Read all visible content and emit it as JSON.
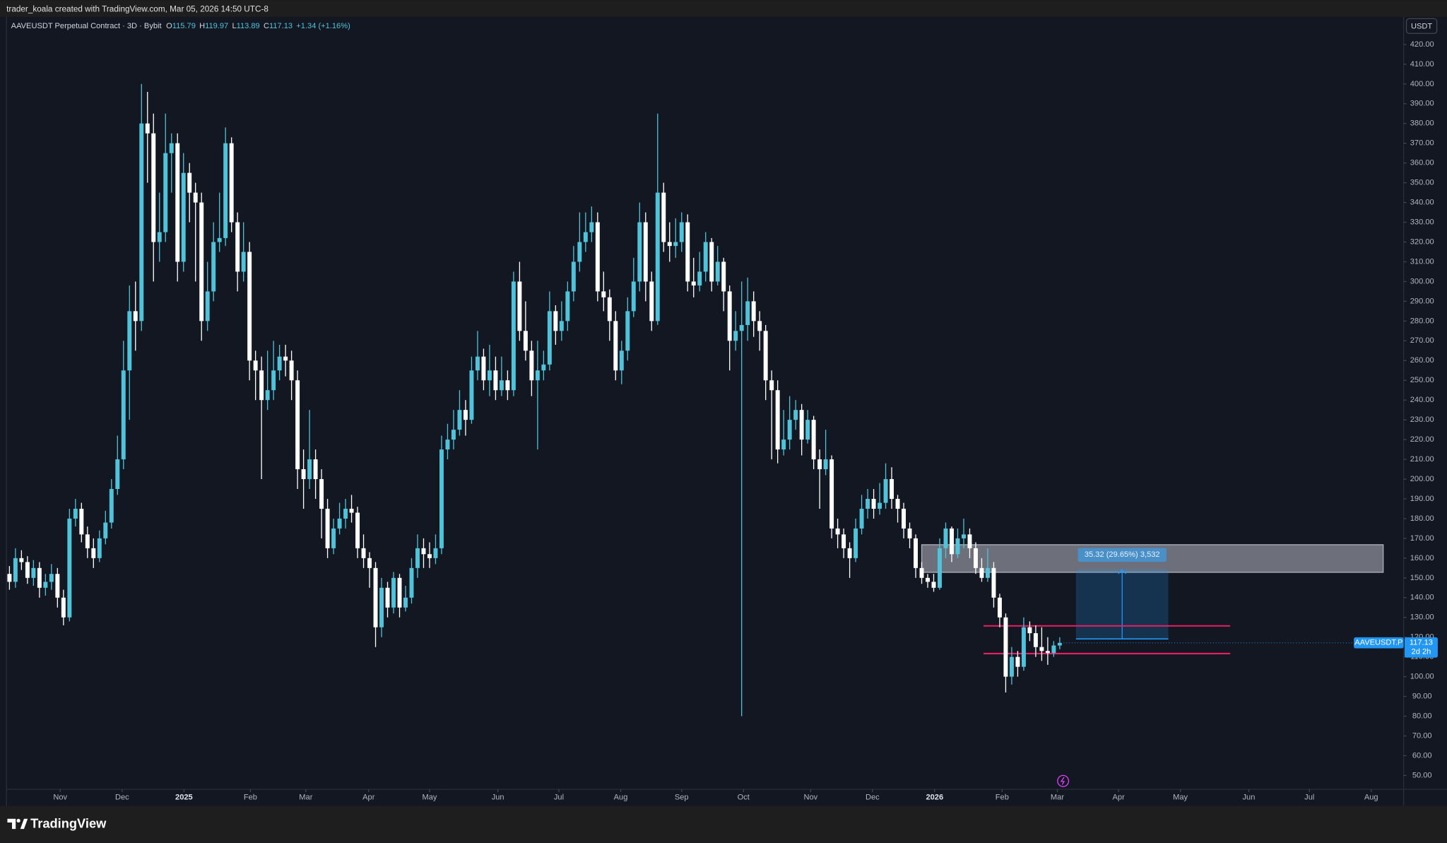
{
  "chart_data": {
    "type": "candlestick",
    "credit": "trader_koala created with TradingView.com, Mar 05, 2026 14:50 UTC-8",
    "title": "AAVEUSDT Perpetual Contract · 3D · Bybit",
    "ohlc_letters": [
      "O",
      "H",
      "L",
      "C"
    ],
    "change_label": "+1.34 (+1.16%)",
    "currency": "USDT",
    "symbol": "AAVEUSDT.P",
    "countdown": "2d 2h",
    "brand": "TradingView",
    "up_color": "#4fc3d9",
    "down_color": "#ffffff",
    "open": [
      152,
      148,
      160,
      158,
      150,
      155,
      145,
      148,
      152,
      140,
      130,
      180,
      185,
      172,
      165,
      160,
      170,
      178,
      195,
      210,
      255,
      285,
      280,
      380,
      375,
      320,
      325,
      365,
      370,
      310,
      355,
      345,
      340,
      280,
      295,
      320,
      322,
      370,
      330,
      305,
      315,
      260,
      255,
      240,
      245,
      255,
      262,
      260,
      250,
      205,
      200,
      210,
      200,
      185,
      165,
      175,
      180,
      185,
      183,
      165,
      160,
      155,
      125,
      145,
      135,
      150,
      135,
      140,
      155,
      165,
      162,
      160,
      165,
      215,
      220,
      225,
      235,
      230,
      255,
      262,
      250,
      255,
      245,
      250,
      245,
      300,
      275,
      265,
      250,
      255,
      258,
      285,
      275,
      280,
      295,
      310,
      320,
      325,
      330,
      295,
      292,
      280,
      255,
      265,
      285,
      300,
      330,
      300,
      280,
      345,
      320,
      318,
      320,
      330,
      300,
      298,
      305,
      320,
      300,
      310,
      295,
      270,
      275,
      278,
      290,
      280,
      275,
      250,
      245,
      215,
      220,
      230,
      235,
      220,
      230,
      210,
      205,
      210,
      175,
      172,
      165,
      160,
      175,
      185,
      190,
      185,
      188,
      200,
      190,
      185,
      175,
      170,
      155,
      150,
      148,
      145,
      165,
      175,
      162,
      170,
      172,
      165,
      155,
      150,
      155,
      140,
      130,
      100,
      110,
      105,
      125,
      122,
      115,
      113,
      112,
      115.79
    ],
    "high": [
      156,
      165,
      164,
      161,
      159,
      158,
      152,
      157,
      155,
      144,
      185,
      190,
      188,
      176,
      170,
      174,
      184,
      200,
      222,
      270,
      298,
      300,
      400,
      396,
      385,
      345,
      385,
      375,
      375,
      365,
      360,
      350,
      345,
      310,
      330,
      345,
      378,
      373,
      335,
      330,
      320,
      265,
      262,
      265,
      270,
      268,
      268,
      265,
      255,
      215,
      235,
      215,
      205,
      190,
      180,
      188,
      190,
      192,
      186,
      172,
      163,
      158,
      150,
      148,
      153,
      152,
      146,
      160,
      172,
      170,
      168,
      172,
      222,
      228,
      235,
      245,
      240,
      262,
      275,
      266,
      268,
      262,
      262,
      255,
      305,
      310,
      290,
      270,
      270,
      265,
      295,
      288,
      290,
      300,
      318,
      335,
      335,
      338,
      335,
      305,
      296,
      285,
      270,
      292,
      312,
      340,
      335,
      305,
      385,
      350,
      330,
      332,
      335,
      334,
      312,
      315,
      325,
      322,
      318,
      312,
      298,
      285,
      300,
      302,
      295,
      285,
      278,
      255,
      250,
      235,
      242,
      240,
      238,
      235,
      232,
      215,
      225,
      212,
      180,
      175,
      168,
      180,
      192,
      195,
      195,
      198,
      208,
      206,
      192,
      188,
      178,
      172,
      158,
      152,
      152,
      170,
      178,
      176,
      175,
      180,
      175,
      168,
      160,
      165,
      158,
      142,
      132,
      115,
      113,
      130,
      128,
      126,
      125,
      120,
      118,
      119.97
    ],
    "low": [
      144,
      145,
      154,
      147,
      146,
      140,
      141,
      144,
      135,
      126,
      128,
      176,
      168,
      160,
      155,
      158,
      167,
      175,
      192,
      205,
      230,
      265,
      275,
      350,
      300,
      310,
      320,
      345,
      300,
      305,
      330,
      300,
      270,
      275,
      290,
      315,
      318,
      325,
      295,
      300,
      250,
      240,
      200,
      235,
      240,
      250,
      252,
      240,
      195,
      185,
      195,
      190,
      170,
      160,
      162,
      172,
      175,
      178,
      160,
      155,
      145,
      115,
      120,
      130,
      132,
      130,
      133,
      137,
      150,
      155,
      155,
      157,
      162,
      210,
      215,
      222,
      222,
      228,
      250,
      245,
      242,
      240,
      242,
      240,
      242,
      270,
      260,
      242,
      215,
      250,
      255,
      268,
      270,
      275,
      290,
      305,
      315,
      320,
      290,
      285,
      270,
      250,
      248,
      260,
      282,
      295,
      290,
      275,
      278,
      315,
      310,
      312,
      315,
      295,
      292,
      295,
      300,
      295,
      298,
      285,
      255,
      265,
      80,
      270,
      272,
      265,
      240,
      210,
      208,
      212,
      215,
      225,
      212,
      218,
      205,
      185,
      202,
      170,
      165,
      160,
      150,
      158,
      172,
      180,
      180,
      182,
      185,
      185,
      178,
      170,
      165,
      150,
      147,
      145,
      143,
      144,
      160,
      158,
      160,
      165,
      160,
      152,
      148,
      148,
      135,
      125,
      92,
      96,
      100,
      103,
      118,
      110,
      108,
      106,
      110,
      113.89
    ],
    "close": [
      148,
      160,
      158,
      150,
      155,
      145,
      148,
      152,
      140,
      130,
      180,
      185,
      172,
      165,
      160,
      170,
      178,
      195,
      210,
      255,
      285,
      280,
      380,
      375,
      320,
      325,
      365,
      370,
      310,
      355,
      345,
      340,
      280,
      295,
      320,
      322,
      370,
      330,
      305,
      315,
      260,
      255,
      240,
      245,
      255,
      262,
      260,
      250,
      205,
      200,
      210,
      200,
      185,
      165,
      175,
      180,
      185,
      183,
      165,
      160,
      155,
      125,
      145,
      135,
      150,
      135,
      140,
      155,
      165,
      162,
      160,
      165,
      215,
      220,
      225,
      235,
      230,
      255,
      262,
      250,
      255,
      245,
      250,
      245,
      300,
      275,
      265,
      250,
      255,
      258,
      285,
      275,
      280,
      295,
      310,
      320,
      325,
      330,
      295,
      292,
      280,
      255,
      265,
      285,
      300,
      330,
      300,
      280,
      345,
      320,
      318,
      320,
      330,
      300,
      298,
      305,
      320,
      300,
      310,
      295,
      270,
      275,
      278,
      290,
      280,
      275,
      250,
      245,
      215,
      220,
      230,
      235,
      220,
      230,
      210,
      205,
      210,
      175,
      172,
      165,
      160,
      175,
      185,
      190,
      185,
      188,
      200,
      190,
      185,
      175,
      170,
      155,
      150,
      148,
      145,
      165,
      175,
      162,
      170,
      172,
      165,
      155,
      150,
      155,
      140,
      130,
      100,
      110,
      105,
      125,
      122,
      115,
      113,
      112,
      115.79,
      117.13
    ],
    "xlim": [
      -0.5,
      232.3
    ],
    "xticks": [
      {
        "value": 8.46,
        "label": "Nov"
      },
      {
        "value": 18.77,
        "label": "Dec"
      },
      {
        "value": 29.08,
        "label": "2025"
      },
      {
        "value": 40.15,
        "label": "Feb"
      },
      {
        "value": 49.38,
        "label": "Mar"
      },
      {
        "value": 59.85,
        "label": "Apr"
      },
      {
        "value": 70.0,
        "label": "May"
      },
      {
        "value": 81.38,
        "label": "Jun"
      },
      {
        "value": 91.54,
        "label": "Jul"
      },
      {
        "value": 101.85,
        "label": "Aug"
      },
      {
        "value": 112.0,
        "label": "Sep"
      },
      {
        "value": 122.3,
        "label": "Oct"
      },
      {
        "value": 133.5,
        "label": "Nov"
      },
      {
        "value": 143.8,
        "label": "Dec"
      },
      {
        "value": 154.15,
        "label": "2026"
      },
      {
        "value": 165.4,
        "label": "Feb"
      },
      {
        "value": 174.6,
        "label": "Mar"
      },
      {
        "value": 184.8,
        "label": "Apr"
      },
      {
        "value": 195.1,
        "label": "May"
      },
      {
        "value": 206.5,
        "label": "Jun"
      },
      {
        "value": 216.6,
        "label": "Jul"
      },
      {
        "value": 226.9,
        "label": "Aug"
      }
    ],
    "ylim": [
      43,
      434
    ],
    "yticks": [
      {
        "value": 50,
        "label": "50.00"
      },
      {
        "value": 60,
        "label": "60.00"
      },
      {
        "value": 70,
        "label": "70.00"
      },
      {
        "value": 80,
        "label": "80.00"
      },
      {
        "value": 90,
        "label": "90.00"
      },
      {
        "value": 100,
        "label": "100.00"
      },
      {
        "value": 110,
        "label": "110.00"
      },
      {
        "value": 120,
        "label": "120.00"
      },
      {
        "value": 130,
        "label": "130.00"
      },
      {
        "value": 140,
        "label": "140.00"
      },
      {
        "value": 150,
        "label": "150.00"
      },
      {
        "value": 160,
        "label": "160.00"
      },
      {
        "value": 170,
        "label": "170.00"
      },
      {
        "value": 180,
        "label": "180.00"
      },
      {
        "value": 190,
        "label": "190.00"
      },
      {
        "value": 200,
        "label": "200.00"
      },
      {
        "value": 210,
        "label": "210.00"
      },
      {
        "value": 220,
        "label": "220.00"
      },
      {
        "value": 230,
        "label": "230.00"
      },
      {
        "value": 240,
        "label": "240.00"
      },
      {
        "value": 250,
        "label": "250.00"
      },
      {
        "value": 260,
        "label": "260.00"
      },
      {
        "value": 270,
        "label": "270.00"
      },
      {
        "value": 280,
        "label": "280.00"
      },
      {
        "value": 290,
        "label": "290.00"
      },
      {
        "value": 300,
        "label": "300.00"
      },
      {
        "value": 310,
        "label": "310.00"
      },
      {
        "value": 320,
        "label": "320.00"
      },
      {
        "value": 330,
        "label": "330.00"
      },
      {
        "value": 340,
        "label": "340.00"
      },
      {
        "value": 350,
        "label": "350.00"
      },
      {
        "value": 360,
        "label": "360.00"
      },
      {
        "value": 370,
        "label": "370.00"
      },
      {
        "value": 380,
        "label": "380.00"
      },
      {
        "value": 390,
        "label": "390.00"
      },
      {
        "value": 400,
        "label": "400.00"
      },
      {
        "value": 410,
        "label": "410.00"
      },
      {
        "value": 420,
        "label": "420.00"
      }
    ],
    "grid": false,
    "zone": {
      "x": [
        152,
        228.9
      ],
      "y": [
        152.8,
        166.8
      ],
      "color": "#c8cad2"
    },
    "levels": {
      "x": [
        162.3,
        203.4
      ],
      "values": [
        125.7,
        111.7
      ],
      "color": "#e91e63"
    },
    "measure": {
      "x": [
        177.7,
        193.1
      ],
      "from": 119.1,
      "to": 154.4,
      "color": "#2196f3",
      "label": "35.32 (29.65%) 3,532"
    }
  }
}
